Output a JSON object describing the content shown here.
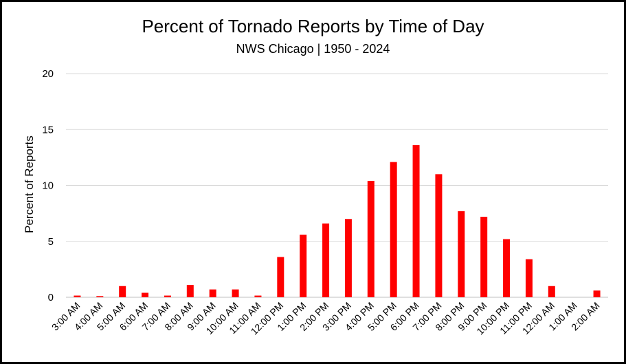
{
  "chart_data": {
    "type": "bar",
    "title": "Percent of Tornado Reports by Time of Day",
    "subtitle": "NWS Chicago | 1950 - 2024",
    "xlabel": "",
    "ylabel": "Percent of Reports",
    "ylim": [
      0,
      20
    ],
    "yticks": [
      0,
      5,
      10,
      15,
      20
    ],
    "grid": true,
    "bar_color": "#ff0000",
    "categories": [
      "3:00 AM",
      "4:00 AM",
      "5:00 AM",
      "6:00 AM",
      "7:00 AM",
      "8:00 AM",
      "9:00 AM",
      "10:00 AM",
      "11:00 AM",
      "12:00 PM",
      "1:00 PM",
      "2:00 PM",
      "3:00 PM",
      "4:00 PM",
      "5:00 PM",
      "6:00 PM",
      "7:00 PM",
      "8:00 PM",
      "9:00 PM",
      "10:00 PM",
      "11:00 PM",
      "12:00 AM",
      "1:00 AM",
      "2:00 AM"
    ],
    "values": [
      0.15,
      0.1,
      1.0,
      0.4,
      0.15,
      1.1,
      0.7,
      0.7,
      0.15,
      3.6,
      5.6,
      6.6,
      7.0,
      10.4,
      12.1,
      13.6,
      11.0,
      7.7,
      7.2,
      5.2,
      3.4,
      1.0,
      0.0,
      0.6
    ]
  }
}
